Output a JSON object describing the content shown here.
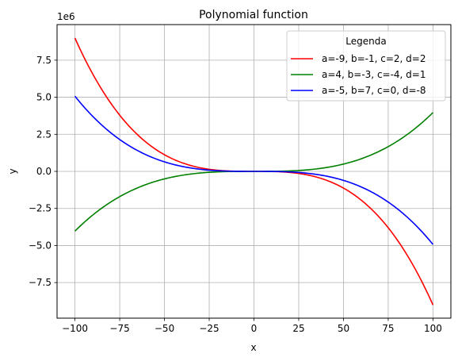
{
  "chart_data": {
    "type": "line",
    "title": "Polynomial function",
    "xlabel": "x",
    "ylabel": "y",
    "offset_label": "1e6",
    "xlim": [
      -110,
      110
    ],
    "ylim": [
      -9.9,
      9.9
    ],
    "y_scale": 1000000,
    "x_ticks": [
      -100,
      -75,
      -50,
      -25,
      0,
      25,
      50,
      75,
      100
    ],
    "x_tick_labels": [
      "−100",
      "−75",
      "−50",
      "−25",
      "0",
      "25",
      "50",
      "75",
      "100"
    ],
    "y_ticks": [
      -7.5,
      -5.0,
      -2.5,
      0.0,
      2.5,
      5.0,
      7.5
    ],
    "y_tick_labels": [
      "−7.5",
      "−5.0",
      "−2.5",
      "0.0",
      "2.5",
      "5.0",
      "7.5"
    ],
    "grid": true,
    "legend": {
      "title": "Legenda",
      "placement": "upper right"
    },
    "series": [
      {
        "name": "a=-9, b=-1, c=2, d=2",
        "color": "#ff0000",
        "coefficients": {
          "a": -9,
          "b": -1,
          "c": 2,
          "d": 2
        },
        "x_range": [
          -100,
          100
        ]
      },
      {
        "name": "a=4, b=-3, c=-4, d=1",
        "color": "#008000",
        "coefficients": {
          "a": 4,
          "b": -3,
          "c": -4,
          "d": 1
        },
        "x_range": [
          -100,
          100
        ]
      },
      {
        "name": "a=-5, b=7, c=0, d=-8",
        "color": "#0000ff",
        "coefficients": {
          "a": -5,
          "b": 7,
          "c": 0,
          "d": -8
        },
        "x_range": [
          -100,
          100
        ]
      }
    ]
  }
}
